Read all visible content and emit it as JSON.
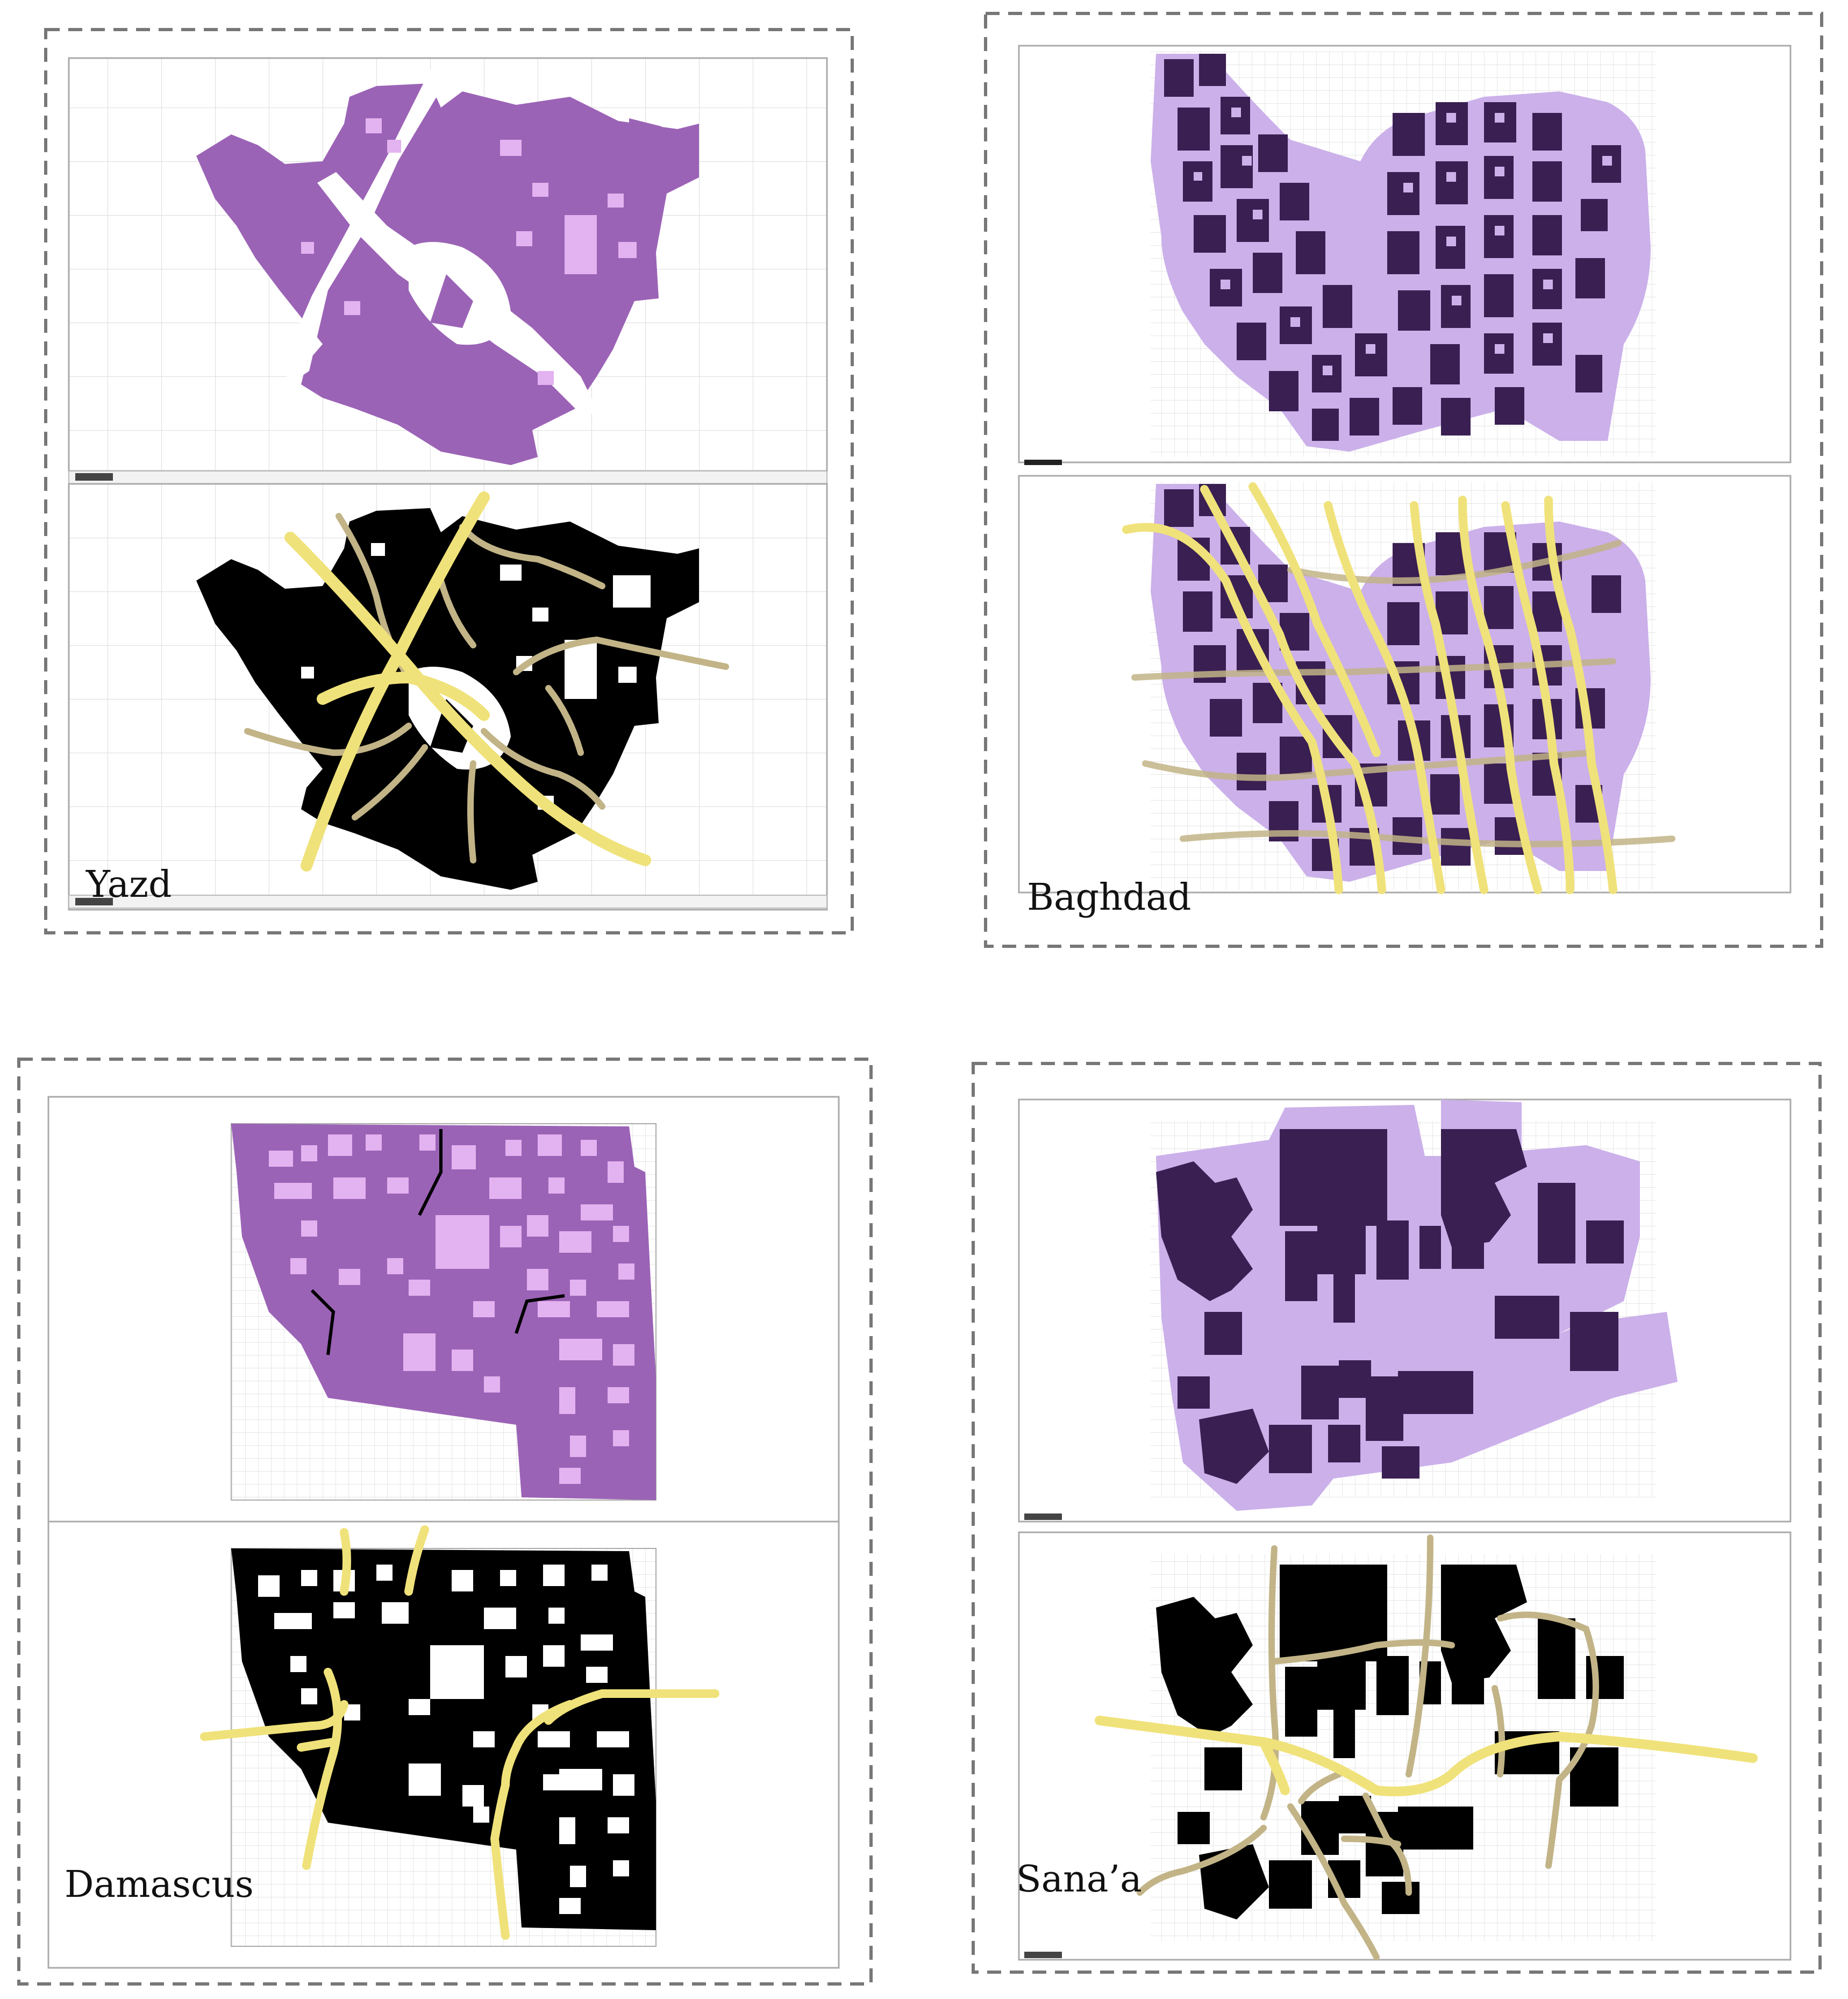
{
  "figure": {
    "panels": [
      {
        "id": "yazd",
        "label": "Yazd"
      },
      {
        "id": "baghdad",
        "label": "Baghdad"
      },
      {
        "id": "damascus",
        "label": "Damascus"
      },
      {
        "id": "sanaa",
        "label": "Sana’a"
      }
    ]
  },
  "colors": {
    "building_purple": "#9b63b6",
    "courtyard_lilac": "#e3b2f0",
    "dark_building": "#3a1f52",
    "translucent_lilac": "#cbb0ea",
    "figure_ground_black": "#000000",
    "main_path_yellow": "#f0e27a",
    "secondary_path_tan": "#c2b487",
    "frame_dash": "#777777",
    "grid_line": "#cfcfcf"
  }
}
